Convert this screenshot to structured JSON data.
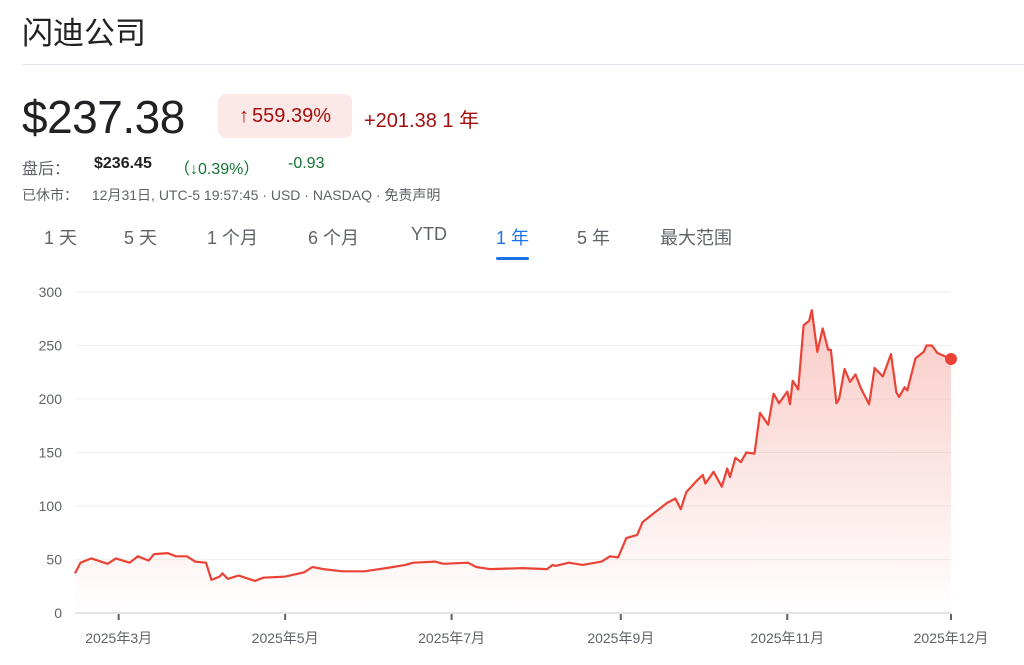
{
  "title": "闪迪公司",
  "quote": {
    "price": "$237.38",
    "change_arrow": "↑",
    "change_percent": "559.39%",
    "change_value": "+201.38",
    "period": "1 年"
  },
  "after_hours": {
    "label": "盘后：",
    "price": "$236.45",
    "percent": "（↓0.39%）",
    "change": "-0.93"
  },
  "status": {
    "market": "已休市：",
    "time": "12月31日, UTC-5 19:57:45 · USD · NASDAQ · 免责声明"
  },
  "tabs": [
    {
      "label": "1 天",
      "active": false
    },
    {
      "label": "5 天",
      "active": false
    },
    {
      "label": "1 个月",
      "active": false
    },
    {
      "label": "6 个月",
      "active": false
    },
    {
      "label": "YTD",
      "active": false
    },
    {
      "label": "1 年",
      "active": true
    },
    {
      "label": "5 年",
      "active": false
    },
    {
      "label": "最大范围",
      "active": false
    }
  ],
  "colors": {
    "up": "#a50e0e",
    "up_bg": "#fce8e6",
    "down": "#137333",
    "line": "#ea4335",
    "accent": "#1a73e8"
  },
  "chart_data": {
    "type": "area",
    "xlim": [
      "2025-02-13",
      "2025-12-31"
    ],
    "ylim": [
      0,
      300
    ],
    "yticks": [
      0,
      50,
      100,
      150,
      200,
      250,
      300
    ],
    "xticks": [
      {
        "label": "2025年3月",
        "date": "2025-03-01"
      },
      {
        "label": "2025年5月",
        "date": "2025-05-01"
      },
      {
        "label": "2025年7月",
        "date": "2025-07-01"
      },
      {
        "label": "2025年9月",
        "date": "2025-09-01"
      },
      {
        "label": "2025年11月",
        "date": "2025-11-01"
      },
      {
        "label": "2025年12月",
        "date": "2025-12-31"
      }
    ],
    "grid": true,
    "series": [
      {
        "points": [
          [
            "2025-02-13",
            37
          ],
          [
            "2025-02-15",
            47
          ],
          [
            "2025-02-19",
            51
          ],
          [
            "2025-02-25",
            46
          ],
          [
            "2025-02-28",
            51
          ],
          [
            "2025-03-05",
            47
          ],
          [
            "2025-03-08",
            53
          ],
          [
            "2025-03-12",
            49
          ],
          [
            "2025-03-14",
            55
          ],
          [
            "2025-03-19",
            56
          ],
          [
            "2025-03-22",
            53
          ],
          [
            "2025-03-26",
            53
          ],
          [
            "2025-03-29",
            48
          ],
          [
            "2025-04-02",
            47
          ],
          [
            "2025-04-04",
            31
          ],
          [
            "2025-04-07",
            34
          ],
          [
            "2025-04-08",
            37
          ],
          [
            "2025-04-10",
            32
          ],
          [
            "2025-04-14",
            35
          ],
          [
            "2025-04-20",
            30
          ],
          [
            "2025-04-23",
            33
          ],
          [
            "2025-05-01",
            34
          ],
          [
            "2025-05-08",
            38
          ],
          [
            "2025-05-11",
            43
          ],
          [
            "2025-05-15",
            41
          ],
          [
            "2025-05-22",
            39
          ],
          [
            "2025-05-30",
            39
          ],
          [
            "2025-06-07",
            42
          ],
          [
            "2025-06-14",
            45
          ],
          [
            "2025-06-17",
            47
          ],
          [
            "2025-06-25",
            48
          ],
          [
            "2025-06-28",
            46
          ],
          [
            "2025-07-07",
            47
          ],
          [
            "2025-07-10",
            43
          ],
          [
            "2025-07-15",
            41
          ],
          [
            "2025-07-27",
            42
          ],
          [
            "2025-08-05",
            41
          ],
          [
            "2025-08-07",
            45
          ],
          [
            "2025-08-08",
            44
          ],
          [
            "2025-08-13",
            47
          ],
          [
            "2025-08-18",
            45
          ],
          [
            "2025-08-25",
            48
          ],
          [
            "2025-08-28",
            53
          ],
          [
            "2025-08-31",
            52
          ],
          [
            "2025-09-03",
            70
          ],
          [
            "2025-09-07",
            73
          ],
          [
            "2025-09-09",
            85
          ],
          [
            "2025-09-13",
            93
          ],
          [
            "2025-09-18",
            103
          ],
          [
            "2025-09-21",
            107
          ],
          [
            "2025-09-23",
            97
          ],
          [
            "2025-09-25",
            113
          ],
          [
            "2025-09-29",
            124
          ],
          [
            "2025-10-01",
            129
          ],
          [
            "2025-10-02",
            121
          ],
          [
            "2025-10-05",
            132
          ],
          [
            "2025-10-08",
            118
          ],
          [
            "2025-10-10",
            135
          ],
          [
            "2025-10-11",
            127
          ],
          [
            "2025-10-13",
            145
          ],
          [
            "2025-10-15",
            141
          ],
          [
            "2025-10-17",
            150
          ],
          [
            "2025-10-20",
            149
          ],
          [
            "2025-10-22",
            187
          ],
          [
            "2025-10-25",
            176
          ],
          [
            "2025-10-27",
            205
          ],
          [
            "2025-10-29",
            196
          ],
          [
            "2025-11-01",
            207
          ],
          [
            "2025-11-02",
            195
          ],
          [
            "2025-11-03",
            217
          ],
          [
            "2025-11-05",
            209
          ],
          [
            "2025-11-07",
            269
          ],
          [
            "2025-11-09",
            273
          ],
          [
            "2025-11-10",
            283
          ],
          [
            "2025-11-12",
            244
          ],
          [
            "2025-11-14",
            266
          ],
          [
            "2025-11-16",
            246
          ],
          [
            "2025-11-17",
            246
          ],
          [
            "2025-11-19",
            196
          ],
          [
            "2025-11-20",
            200
          ],
          [
            "2025-11-22",
            228
          ],
          [
            "2025-11-24",
            216
          ],
          [
            "2025-11-26",
            223
          ],
          [
            "2025-11-28",
            210
          ],
          [
            "2025-12-01",
            195
          ],
          [
            "2025-12-03",
            229
          ],
          [
            "2025-12-06",
            221
          ],
          [
            "2025-12-09",
            242
          ],
          [
            "2025-12-11",
            206
          ],
          [
            "2025-12-12",
            202
          ],
          [
            "2025-12-14",
            211
          ],
          [
            "2025-12-15",
            208
          ],
          [
            "2025-12-18",
            238
          ],
          [
            "2025-12-21",
            244
          ],
          [
            "2025-12-22",
            250
          ],
          [
            "2025-12-24",
            250
          ],
          [
            "2025-12-26",
            243
          ],
          [
            "2025-12-31",
            237.38
          ]
        ]
      }
    ]
  }
}
